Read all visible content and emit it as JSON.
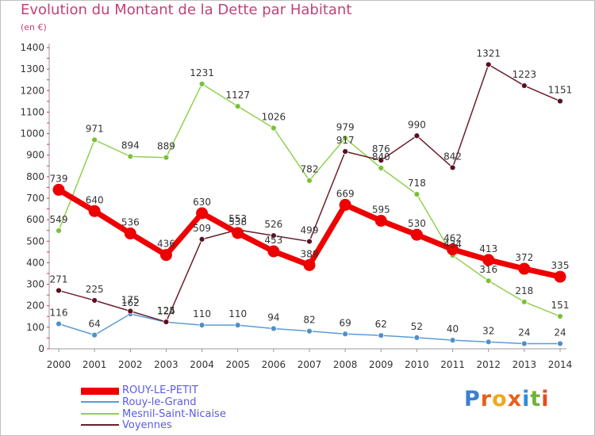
{
  "title": "Evolution du Montant de la Dette par Habitant",
  "unit": "(en €)",
  "logo_text": "Proxiti",
  "chart_data": {
    "type": "line",
    "x": [
      2000,
      2001,
      2002,
      2003,
      2004,
      2005,
      2006,
      2007,
      2008,
      2009,
      2010,
      2011,
      2012,
      2013,
      2014
    ],
    "ylim": [
      0,
      1400
    ],
    "yticks": [
      0,
      100,
      200,
      300,
      400,
      500,
      600,
      700,
      800,
      900,
      1000,
      1100,
      1200,
      1300,
      1400
    ],
    "grid": false,
    "legend_position": "bottom-left",
    "series": [
      {
        "name": "ROUY-LE-PETIT",
        "color": "#ee0000",
        "values": [
          739,
          640,
          536,
          436,
          630,
          538,
          453,
          389,
          669,
          595,
          530,
          462,
          413,
          372,
          335
        ]
      },
      {
        "name": "Rouy-le-Grand",
        "color": "#5b9bd5",
        "values": [
          116,
          64,
          162,
          124,
          110,
          110,
          94,
          82,
          69,
          62,
          52,
          40,
          32,
          24,
          24
        ]
      },
      {
        "name": "Mesnil-Saint-Nicaise",
        "color": "#92d050",
        "values": [
          549,
          971,
          894,
          889,
          1231,
          1127,
          1026,
          782,
          979,
          840,
          718,
          434,
          316,
          218,
          151
        ]
      },
      {
        "name": "Voyennes",
        "color": "#6b1f2a",
        "values": [
          271,
          225,
          175,
          125,
          509,
          553,
          526,
          499,
          917,
          876,
          990,
          842,
          1321,
          1223,
          1151
        ]
      }
    ]
  }
}
